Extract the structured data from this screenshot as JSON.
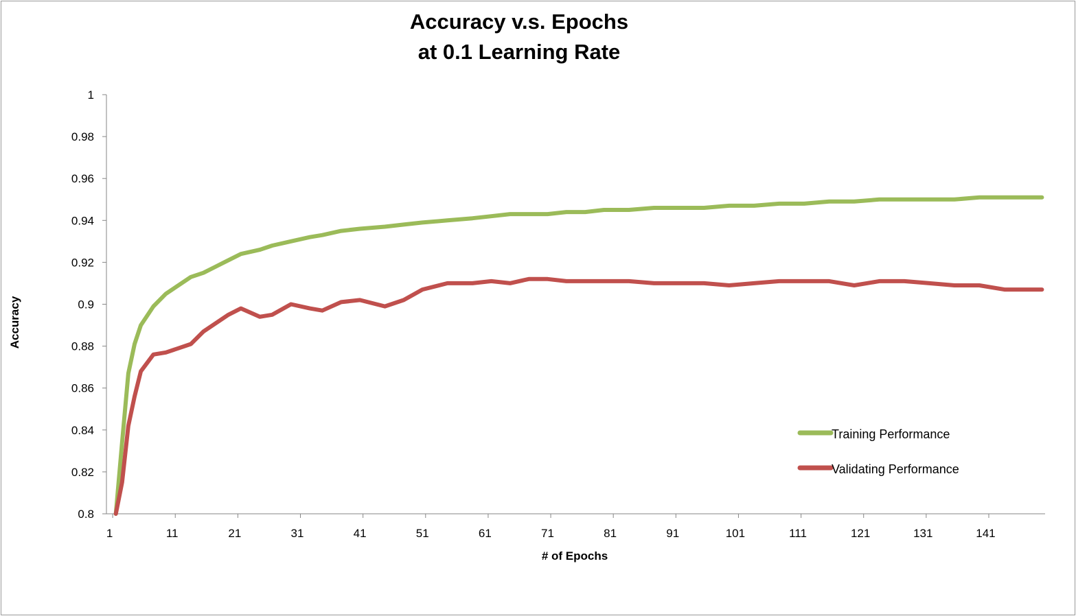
{
  "chart_data": {
    "type": "line",
    "title_lines": [
      "Accuracy v.s. Epochs",
      "at 0.1 Learning Rate"
    ],
    "xlabel": "# of Epochs",
    "ylabel": "Accuracy",
    "xlim": [
      1,
      150
    ],
    "ylim": [
      0.8,
      1
    ],
    "x_tick_labels": [
      "1",
      "11",
      "21",
      "31",
      "41",
      "51",
      "61",
      "71",
      "81",
      "91",
      "101",
      "111",
      "121",
      "131",
      "141"
    ],
    "y_tick_labels": [
      "0.8",
      "0.82",
      "0.84",
      "0.86",
      "0.88",
      "0.9",
      "0.92",
      "0.94",
      "0.96",
      "0.98",
      "1"
    ],
    "grid": false,
    "legend_position": "bottom-right, inside plot area",
    "x": [
      2,
      3,
      4,
      5,
      6,
      8,
      10,
      12,
      14,
      16,
      18,
      20,
      22,
      25,
      27,
      30,
      33,
      35,
      38,
      41,
      45,
      48,
      51,
      55,
      59,
      62,
      65,
      68,
      71,
      74,
      77,
      80,
      84,
      88,
      92,
      96,
      100,
      104,
      108,
      112,
      116,
      120,
      124,
      128,
      132,
      136,
      140,
      144,
      148,
      150
    ],
    "series": [
      {
        "name": "Training Performance",
        "color": "#9bbb59",
        "values": [
          0.8,
          0.834,
          0.867,
          0.881,
          0.89,
          0.899,
          0.905,
          0.909,
          0.913,
          0.915,
          0.918,
          0.921,
          0.924,
          0.926,
          0.928,
          0.93,
          0.932,
          0.933,
          0.935,
          0.936,
          0.937,
          0.938,
          0.939,
          0.94,
          0.941,
          0.942,
          0.943,
          0.943,
          0.943,
          0.944,
          0.944,
          0.945,
          0.945,
          0.946,
          0.946,
          0.946,
          0.947,
          0.947,
          0.948,
          0.948,
          0.949,
          0.949,
          0.95,
          0.95,
          0.95,
          0.95,
          0.951,
          0.951,
          0.951,
          0.951
        ]
      },
      {
        "name": "Validating Performance",
        "color": "#c0504d",
        "values": [
          0.8,
          0.815,
          0.842,
          0.856,
          0.868,
          0.876,
          0.877,
          0.879,
          0.881,
          0.887,
          0.891,
          0.895,
          0.898,
          0.894,
          0.895,
          0.9,
          0.898,
          0.897,
          0.901,
          0.902,
          0.899,
          0.902,
          0.907,
          0.91,
          0.91,
          0.911,
          0.91,
          0.912,
          0.912,
          0.911,
          0.911,
          0.911,
          0.911,
          0.91,
          0.91,
          0.91,
          0.909,
          0.91,
          0.911,
          0.911,
          0.911,
          0.909,
          0.911,
          0.911,
          0.91,
          0.909,
          0.909,
          0.907,
          0.907,
          0.907
        ]
      }
    ]
  }
}
